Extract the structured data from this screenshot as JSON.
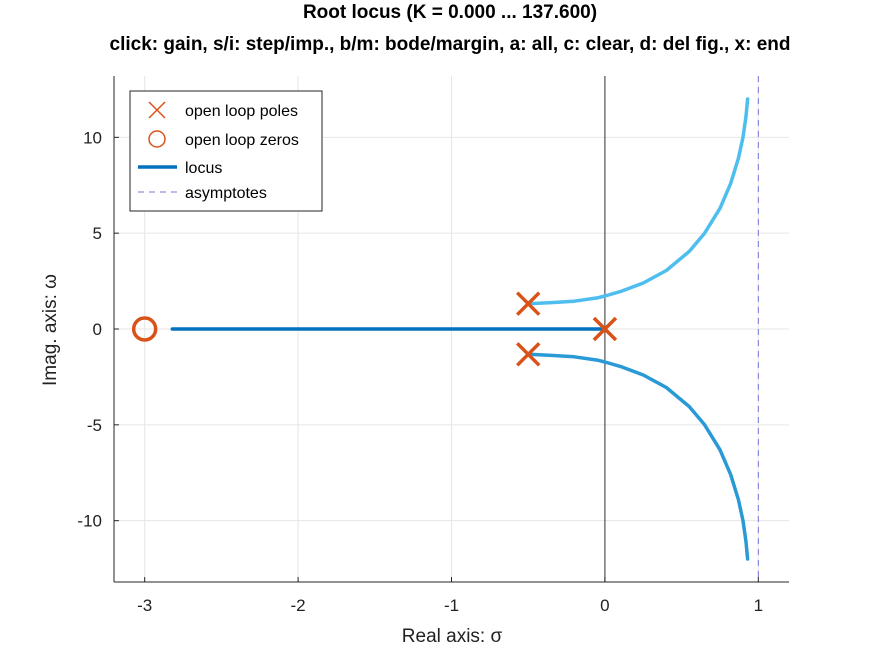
{
  "window": {
    "title_line1": "Root locus (K = 0.000 ... 137.600)",
    "title_line2": "click: gain, s/i: step/imp., b/m: bode/margin, a: all, c: clear, d: del fig., x: end"
  },
  "chart_data": {
    "type": "line",
    "title": "Root locus (K = 0.000 ... 137.600)",
    "subtitle": "click: gain, s/i: step/imp., b/m: bode/margin, a: all, c: clear, d: del fig., x: end",
    "xlabel": "Real axis: σ",
    "ylabel": "Imag. axis: ω",
    "xlim": [
      -3.2,
      1.2
    ],
    "ylim": [
      -13.2,
      13.2
    ],
    "xticks": [
      -3,
      -2,
      -1,
      0,
      1
    ],
    "xtick_labels": [
      "-3",
      "-2",
      "-1",
      "0",
      "1"
    ],
    "yticks": [
      -10,
      -5,
      0,
      5,
      10
    ],
    "ytick_labels": [
      "-10",
      "-5",
      "0",
      "5",
      "10"
    ],
    "grid": true,
    "legend_position": "top-left",
    "legend": [
      {
        "label": "open loop poles",
        "marker": "x"
      },
      {
        "label": "open loop zeros",
        "marker": "o"
      },
      {
        "label": "locus",
        "marker": "line"
      },
      {
        "label": "asymptotes",
        "marker": "dashed"
      }
    ],
    "open_loop_poles": [
      {
        "re": 0,
        "im": 0
      },
      {
        "re": -0.5,
        "im": 1.32
      },
      {
        "re": -0.5,
        "im": -1.32
      }
    ],
    "open_loop_zeros": [
      {
        "re": -3,
        "im": 0
      }
    ],
    "asymptote": {
      "re": 1
    },
    "series": [
      {
        "x": [
          -0.5,
          -0.35,
          -0.2,
          -0.05,
          0.0,
          0.1,
          0.25,
          0.4,
          0.55,
          0.65,
          0.75,
          0.82,
          0.87,
          0.9,
          0.92,
          0.93
        ],
        "y": [
          1.32,
          1.38,
          1.45,
          1.62,
          1.72,
          1.95,
          2.4,
          3.05,
          4.05,
          5.0,
          6.3,
          7.6,
          8.9,
          10.0,
          11.1,
          12.0
        ],
        "color": "#4DBEEE"
      },
      {
        "x": [
          -0.5,
          -0.35,
          -0.2,
          -0.05,
          0.0,
          0.1,
          0.25,
          0.4,
          0.55,
          0.65,
          0.75,
          0.82,
          0.87,
          0.9,
          0.92,
          0.93
        ],
        "y": [
          -1.32,
          -1.38,
          -1.45,
          -1.62,
          -1.72,
          -1.95,
          -2.4,
          -3.05,
          -4.05,
          -5.0,
          -6.3,
          -7.6,
          -8.9,
          -10.0,
          -11.1,
          -12.0
        ],
        "color": "#2A9AD6"
      },
      {
        "x": [
          -2.82,
          0.0
        ],
        "y": [
          0,
          0
        ],
        "color": "#0072BD"
      }
    ],
    "colors": {
      "poles_zeros": "#D95319",
      "locus_legend": "#0072BD",
      "asymptote": "#7777DD",
      "grid": "#e6e6e6",
      "imag_axis": "#333333"
    }
  }
}
